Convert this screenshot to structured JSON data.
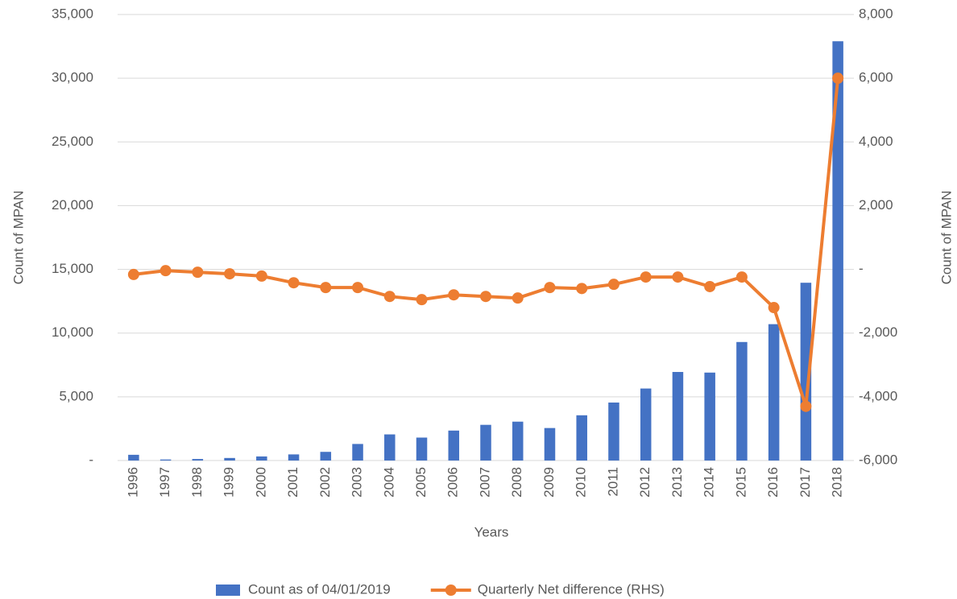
{
  "chart_data": {
    "type": "bar-line",
    "x_label": "Years",
    "y_label": "Count of MPAN",
    "y2_label": "Count of MPAN",
    "categories": [
      "1996",
      "1997",
      "1998",
      "1999",
      "2000",
      "2001",
      "2002",
      "2003",
      "2004",
      "2005",
      "2006",
      "2007",
      "2008",
      "2009",
      "2010",
      "2011",
      "2012",
      "2013",
      "2014",
      "2015",
      "2016",
      "2017",
      "2018"
    ],
    "series": [
      {
        "name": "Count as of 04/01/2019",
        "type": "bar",
        "color": "#4472c4",
        "axis": "y",
        "values": [
          450,
          80,
          120,
          200,
          320,
          480,
          680,
          1300,
          2050,
          1800,
          2350,
          2800,
          3050,
          2550,
          3550,
          4550,
          5650,
          6950,
          6900,
          9300,
          10700,
          13950,
          32900
        ]
      },
      {
        "name": "Quarterly Net difference (RHS)",
        "type": "line",
        "color": "#ed7d31",
        "axis": "y2",
        "values": [
          -160,
          -40,
          -90,
          -140,
          -210,
          -420,
          -570,
          -570,
          -850,
          -950,
          -800,
          -850,
          -900,
          -570,
          -600,
          -470,
          -240,
          -240,
          -540,
          -240,
          -1200,
          -4300,
          6000
        ]
      }
    ],
    "ylim": [
      0,
      35000
    ],
    "yticks": [
      {
        "value": 0,
        "label": "-"
      },
      {
        "value": 5000,
        "label": "5,000"
      },
      {
        "value": 10000,
        "label": "10,000"
      },
      {
        "value": 15000,
        "label": "15,000"
      },
      {
        "value": 20000,
        "label": "20,000"
      },
      {
        "value": 25000,
        "label": "25,000"
      },
      {
        "value": 30000,
        "label": "30,000"
      },
      {
        "value": 35000,
        "label": "35,000"
      }
    ],
    "y2lim": [
      -6000,
      8000
    ],
    "y2ticks": [
      {
        "value": -6000,
        "label": "-6,000"
      },
      {
        "value": -4000,
        "label": "-4,000"
      },
      {
        "value": -2000,
        "label": "-2,000"
      },
      {
        "value": 0,
        "label": "-"
      },
      {
        "value": 2000,
        "label": "2,000"
      },
      {
        "value": 4000,
        "label": "4,000"
      },
      {
        "value": 6000,
        "label": "6,000"
      },
      {
        "value": 8000,
        "label": "8,000"
      }
    ],
    "grid": true,
    "legend": "bottom"
  }
}
